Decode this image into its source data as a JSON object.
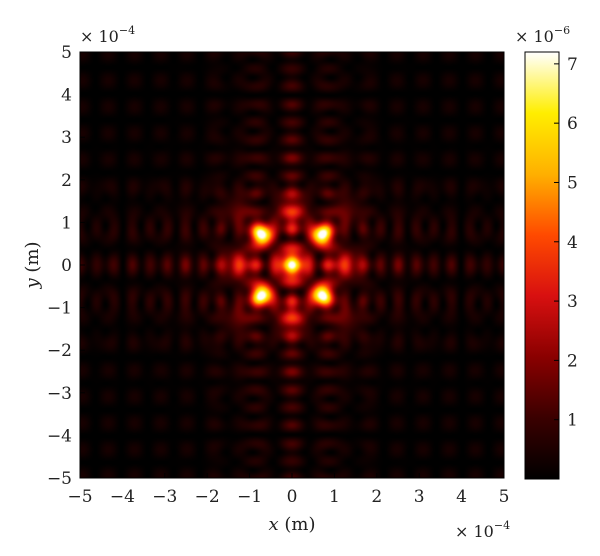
{
  "chart_data": {
    "type": "heatmap",
    "title": "",
    "xlabel": {
      "var": "x",
      "unit": " (m)"
    },
    "ylabel": {
      "var": "y",
      "unit": " (m)"
    },
    "x_range": [
      -5,
      5
    ],
    "y_range": [
      -5,
      5
    ],
    "x_ticks": [
      "−5",
      "−4",
      "−3",
      "−2",
      "−1",
      "0",
      "1",
      "2",
      "3",
      "4",
      "5"
    ],
    "y_ticks": [
      "5",
      "4",
      "3",
      "2",
      "1",
      "0",
      "−1",
      "−2",
      "−3",
      "−4",
      "−5"
    ],
    "x_multiplier": {
      "base": "× 10",
      "exp": "−4"
    },
    "y_multiplier": {
      "base": "× 10",
      "exp": "−4"
    },
    "colorbar": {
      "multiplier": {
        "base": "× 10",
        "exp": "−6"
      },
      "range": [
        0,
        7.2
      ],
      "ticks": [
        "1",
        "2",
        "3",
        "4",
        "5",
        "6",
        "7"
      ],
      "tick_values": [
        1,
        2,
        3,
        4,
        5,
        6,
        7
      ],
      "colormap": "hot",
      "colormap_stops": [
        "#000000",
        "#3a0000",
        "#8a0000",
        "#d81010",
        "#ff4a00",
        "#ffb000",
        "#ffee00",
        "#ffffff"
      ]
    },
    "peaks": [
      {
        "x": -0.7,
        "y": 0.7,
        "value": 7.2
      },
      {
        "x": 0.7,
        "y": 0.7,
        "value": 7.2
      },
      {
        "x": -0.7,
        "y": -0.7,
        "value": 7.2
      },
      {
        "x": 0.7,
        "y": -0.7,
        "value": 7.2
      }
    ],
    "pattern": "four bright lobes near the origin with fringe arms along the x and y axes"
  }
}
